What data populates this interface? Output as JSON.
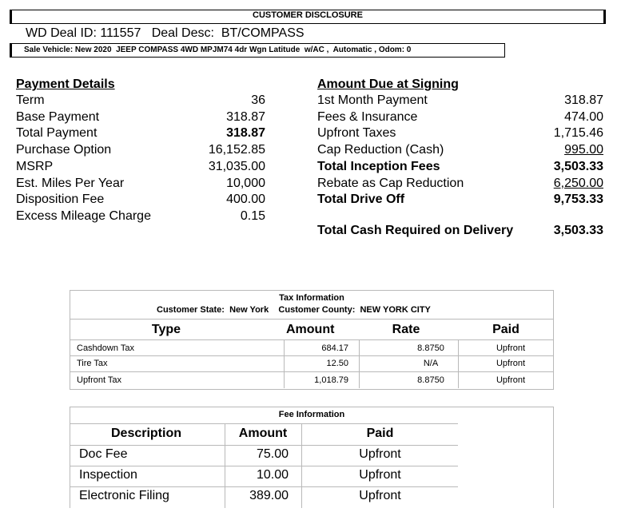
{
  "header": {
    "title": "CUSTOMER DISCLOSURE",
    "deal_line": "WD Deal ID: 111557   Deal Desc:  BT/COMPASS",
    "sale_vehicle": "Sale Vehicle: New 2020  JEEP COMPASS 4WD MPJM74 4dr Wgn Latitude  w/AC ,  Automatic , Odom: 0"
  },
  "payment_details": {
    "heading": "Payment Details",
    "rows": [
      {
        "label": "Term",
        "value": "36",
        "bold": false
      },
      {
        "label": "Base Payment",
        "value": "318.87",
        "bold": false
      },
      {
        "label": "Total Payment",
        "value": "318.87",
        "bold": true
      },
      {
        "label": "Purchase Option",
        "value": "16,152.85",
        "bold": false
      },
      {
        "label": "MSRP",
        "value": "31,035.00",
        "bold": false
      },
      {
        "label": "Est. Miles Per Year",
        "value": "10,000",
        "bold": false
      },
      {
        "label": "Disposition Fee",
        "value": "400.00",
        "bold": false
      },
      {
        "label": "Excess Mileage Charge",
        "value": "0.15",
        "bold": false
      }
    ]
  },
  "amount_due": {
    "heading": "Amount Due at Signing",
    "rows": [
      {
        "label": "1st Month Payment",
        "value": "318.87",
        "bold": false,
        "underline": false
      },
      {
        "label": "Fees & Insurance",
        "value": "474.00",
        "bold": false,
        "underline": false
      },
      {
        "label": "Upfront Taxes",
        "value": "1,715.46",
        "bold": false,
        "underline": false
      },
      {
        "label": "Cap Reduction (Cash)",
        "value": "995.00",
        "bold": false,
        "underline": true
      },
      {
        "label": "Total Inception Fees",
        "value": "3,503.33",
        "bold": true,
        "underline": false
      },
      {
        "label": "Rebate as Cap Reduction",
        "value": "6,250.00",
        "bold": false,
        "underline": true
      },
      {
        "label": "Total Drive Off",
        "value": "9,753.33",
        "bold": true,
        "underline": false
      }
    ],
    "cash_required_label": "Total Cash Required on Delivery",
    "cash_required_value": "3,503.33"
  },
  "tax_info": {
    "title": "Tax Information",
    "state_line": "Customer State:  New York    Customer County:  NEW YORK CITY",
    "headers": {
      "type": "Type",
      "amount": "Amount",
      "rate": "Rate",
      "paid": "Paid"
    },
    "rows": [
      {
        "type": "Cashdown Tax",
        "amount": "684.17",
        "rate": "8.8750",
        "paid": "Upfront"
      },
      {
        "type": "Tire Tax",
        "amount": "12.50",
        "rate": "N/A",
        "paid": "Upfront"
      },
      {
        "type": "Upfront Tax",
        "amount": "1,018.79",
        "rate": "8.8750",
        "paid": "Upfront"
      }
    ]
  },
  "fee_info": {
    "title": "Fee Information",
    "headers": {
      "description": "Description",
      "amount": "Amount",
      "paid": "Paid"
    },
    "rows": [
      {
        "description": "Doc Fee",
        "amount": "75.00",
        "paid": "Upfront"
      },
      {
        "description": "Inspection",
        "amount": "10.00",
        "paid": "Upfront"
      },
      {
        "description": "Electronic Filing",
        "amount": "389.00",
        "paid": "Upfront"
      }
    ]
  }
}
